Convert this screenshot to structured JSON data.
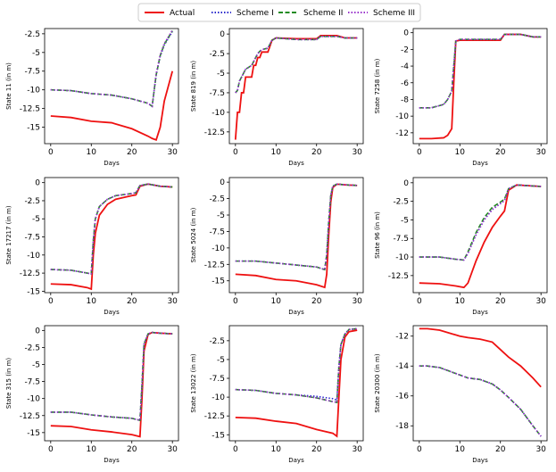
{
  "legend": [
    {
      "name": "Actual",
      "color": "#ee1111",
      "dash": "solid"
    },
    {
      "name": "Scheme I",
      "color": "#2a2acc",
      "dash": "dot"
    },
    {
      "name": "Scheme II",
      "color": "#228b22",
      "dash": "dash"
    },
    {
      "name": "Scheme III",
      "color": "#9933cc",
      "dash": "dot"
    }
  ],
  "chart_data": [
    {
      "type": "line",
      "ylabel": "State 11 (in m)",
      "xlabel": "Days",
      "xlim": [
        -1.5,
        31.5
      ],
      "xticks": [
        0,
        10,
        20,
        30
      ],
      "ylim": [
        -17.2,
        -1.8
      ],
      "yticks": [
        -2.5,
        -5.0,
        -7.5,
        -10.0,
        -12.5,
        -15.0
      ],
      "x": [
        0,
        5,
        10,
        15,
        20,
        24,
        25,
        26,
        27,
        28,
        30
      ],
      "series": [
        {
          "values": [
            -13.5,
            -13.7,
            -14.2,
            -14.4,
            -15.2,
            -16.2,
            -16.5,
            -16.7,
            -15,
            -11.5,
            -7.5
          ]
        },
        {
          "values": [
            -10,
            -10.1,
            -10.5,
            -10.7,
            -11.2,
            -11.8,
            -12.2,
            -8,
            -5.5,
            -4,
            -2.2
          ]
        },
        {
          "values": [
            -10,
            -10.1,
            -10.5,
            -10.7,
            -11.2,
            -11.8,
            -12.2,
            -8,
            -5.4,
            -3.9,
            -2.1
          ]
        },
        {
          "values": [
            -10,
            -10.1,
            -10.5,
            -10.7,
            -11.2,
            -11.8,
            -12.2,
            -7.8,
            -5.3,
            -3.8,
            -2.0
          ]
        }
      ]
    },
    {
      "type": "line",
      "ylabel": "State 819 (in m)",
      "xlabel": "Days",
      "xlim": [
        -1.5,
        31.5
      ],
      "xticks": [
        0,
        10,
        20,
        30
      ],
      "ylim": [
        -14,
        0.7
      ],
      "yticks": [
        0.0,
        -2.5,
        -5.0,
        -7.5,
        -10.0,
        -12.5
      ],
      "x": [
        0,
        0.5,
        1,
        1.5,
        2,
        2.5,
        4,
        4.5,
        5,
        5.5,
        6,
        6.5,
        8,
        9,
        10,
        15,
        20,
        21,
        25,
        27,
        30
      ],
      "series": [
        {
          "values": [
            -13.5,
            -10,
            -10,
            -7.5,
            -7.5,
            -5.5,
            -5.5,
            -4,
            -4,
            -3,
            -3,
            -2.3,
            -2.3,
            -0.8,
            -0.5,
            -0.6,
            -0.6,
            -0.2,
            -0.2,
            -0.5,
            -0.5
          ]
        },
        {
          "values": [
            -7.5,
            -7.2,
            -6,
            -5.5,
            -5,
            -4.5,
            -4,
            -3.5,
            -3,
            -2.5,
            -2.2,
            -2,
            -1.8,
            -0.8,
            -0.5,
            -0.7,
            -0.7,
            -0.3,
            -0.3,
            -0.5,
            -0.5
          ]
        },
        {
          "values": [
            -7.5,
            -7.2,
            -6,
            -5.5,
            -5,
            -4.5,
            -4,
            -3.5,
            -3,
            -2.5,
            -2.2,
            -2,
            -1.8,
            -0.8,
            -0.5,
            -0.7,
            -0.7,
            -0.3,
            -0.3,
            -0.5,
            -0.5
          ]
        },
        {
          "values": [
            -7.5,
            -7.2,
            -6,
            -5.5,
            -5,
            -4.5,
            -4,
            -3.5,
            -3,
            -2.5,
            -2.2,
            -2,
            -1.8,
            -0.8,
            -0.5,
            -0.7,
            -0.7,
            -0.3,
            -0.3,
            -0.5,
            -0.5
          ]
        }
      ]
    },
    {
      "type": "line",
      "ylabel": "State 7258 (in m)",
      "xlabel": "Days",
      "xlim": [
        -1.5,
        31.5
      ],
      "xticks": [
        0,
        10,
        20,
        30
      ],
      "ylim": [
        -13.3,
        0.5
      ],
      "yticks": [
        0,
        -2,
        -4,
        -6,
        -8,
        -10,
        -12
      ],
      "x": [
        0,
        3,
        6,
        7,
        8,
        8.5,
        9,
        10,
        15,
        20,
        21,
        25,
        28,
        30
      ],
      "series": [
        {
          "values": [
            -12.7,
            -12.7,
            -12.6,
            -12.3,
            -11.5,
            -6,
            -1,
            -0.9,
            -0.9,
            -0.9,
            -0.2,
            -0.2,
            -0.5,
            -0.5
          ]
        },
        {
          "values": [
            -9,
            -9,
            -8.6,
            -8,
            -7,
            -4,
            -1,
            -0.8,
            -0.8,
            -0.8,
            -0.2,
            -0.2,
            -0.5,
            -0.5
          ]
        },
        {
          "values": [
            -9,
            -9,
            -8.6,
            -8,
            -7,
            -4,
            -1,
            -0.8,
            -0.8,
            -0.8,
            -0.2,
            -0.2,
            -0.5,
            -0.5
          ]
        },
        {
          "values": [
            -9,
            -9,
            -8.6,
            -8,
            -7,
            -4,
            -1,
            -0.8,
            -0.8,
            -0.8,
            -0.2,
            -0.2,
            -0.5,
            -0.5
          ]
        }
      ]
    },
    {
      "type": "line",
      "ylabel": "State 17217 (in m)",
      "xlabel": "Days",
      "xlim": [
        -1.5,
        31.5
      ],
      "xticks": [
        0,
        10,
        20,
        30
      ],
      "ylim": [
        -15.2,
        0.7
      ],
      "yticks": [
        0.0,
        -2.5,
        -5.0,
        -7.5,
        -10.0,
        -12.5,
        -15.0
      ],
      "x": [
        0,
        5,
        9,
        10,
        10.5,
        11,
        12,
        14,
        16,
        20,
        21,
        22,
        24,
        27,
        30
      ],
      "series": [
        {
          "values": [
            -14,
            -14.1,
            -14.5,
            -14.7,
            -10,
            -7,
            -4.5,
            -3,
            -2.3,
            -1.8,
            -1.7,
            -0.5,
            -0.2,
            -0.5,
            -0.6
          ]
        },
        {
          "values": [
            -12,
            -12.1,
            -12.5,
            -12.6,
            -8,
            -5,
            -3.3,
            -2.3,
            -1.8,
            -1.5,
            -1.4,
            -0.4,
            -0.2,
            -0.5,
            -0.6
          ]
        },
        {
          "values": [
            -12,
            -12.1,
            -12.5,
            -12.6,
            -8,
            -5,
            -3.3,
            -2.3,
            -1.8,
            -1.5,
            -1.4,
            -0.4,
            -0.2,
            -0.5,
            -0.6
          ]
        },
        {
          "values": [
            -12,
            -12.1,
            -12.5,
            -12.6,
            -8,
            -5,
            -3.3,
            -2.3,
            -1.8,
            -1.5,
            -1.4,
            -0.4,
            -0.2,
            -0.5,
            -0.6
          ]
        }
      ]
    },
    {
      "type": "line",
      "ylabel": "State 5024 (in m)",
      "xlabel": "Days",
      "xlim": [
        -1.5,
        31.5
      ],
      "xticks": [
        0,
        10,
        20,
        30
      ],
      "ylim": [
        -16.8,
        0.7
      ],
      "yticks": [
        0.0,
        -2.5,
        -5.0,
        -7.5,
        -10.0,
        -12.5,
        -15.0
      ],
      "x": [
        0,
        5,
        10,
        15,
        20,
        22,
        22.5,
        23,
        23.5,
        24,
        25,
        27,
        30
      ],
      "series": [
        {
          "values": [
            -14,
            -14.2,
            -14.8,
            -15,
            -15.6,
            -16,
            -14,
            -8,
            -3,
            -0.8,
            -0.3,
            -0.4,
            -0.5
          ]
        },
        {
          "values": [
            -12,
            -12,
            -12.3,
            -12.6,
            -12.9,
            -13.3,
            -11,
            -6,
            -2,
            -0.6,
            -0.3,
            -0.4,
            -0.5
          ]
        },
        {
          "values": [
            -12,
            -12,
            -12.3,
            -12.6,
            -12.9,
            -13.3,
            -11,
            -6,
            -2,
            -0.6,
            -0.3,
            -0.4,
            -0.5
          ]
        },
        {
          "values": [
            -12,
            -12,
            -12.3,
            -12.6,
            -12.9,
            -13.3,
            -11,
            -6,
            -2,
            -0.6,
            -0.3,
            -0.4,
            -0.5
          ]
        }
      ]
    },
    {
      "type": "line",
      "ylabel": "State 96 (in m)",
      "xlabel": "Days",
      "xlim": [
        -1.5,
        31.5
      ],
      "xticks": [
        0,
        10,
        20,
        30
      ],
      "ylim": [
        -14.8,
        0.7
      ],
      "yticks": [
        0.0,
        -2.5,
        -5.0,
        -7.5,
        -10.0,
        -12.5
      ],
      "x": [
        0,
        5,
        9,
        11,
        12,
        14,
        16,
        18,
        20,
        21,
        22,
        24,
        27,
        30
      ],
      "series": [
        {
          "values": [
            -13.5,
            -13.6,
            -13.9,
            -14.1,
            -13.5,
            -10.5,
            -8,
            -6,
            -4.5,
            -3.8,
            -1,
            -0.3,
            -0.4,
            -0.5
          ]
        },
        {
          "values": [
            -10,
            -10,
            -10.3,
            -10.4,
            -9.5,
            -7,
            -5,
            -3.6,
            -2.8,
            -2.4,
            -0.8,
            -0.3,
            -0.4,
            -0.5
          ]
        },
        {
          "values": [
            -10,
            -10,
            -10.3,
            -10.4,
            -9.3,
            -6.7,
            -4.7,
            -3.3,
            -2.6,
            -2.2,
            -0.8,
            -0.3,
            -0.4,
            -0.5
          ]
        },
        {
          "values": [
            -10,
            -10,
            -10.3,
            -10.4,
            -9.5,
            -7,
            -5,
            -3.6,
            -2.8,
            -2.4,
            -0.8,
            -0.3,
            -0.4,
            -0.5
          ]
        }
      ]
    },
    {
      "type": "line",
      "ylabel": "State 315 (in m)",
      "xlabel": "Days",
      "xlim": [
        -1.5,
        31.5
      ],
      "xticks": [
        0,
        10,
        20,
        30
      ],
      "ylim": [
        -16.2,
        0.7
      ],
      "yticks": [
        0.0,
        -2.5,
        -5.0,
        -7.5,
        -10.0,
        -12.5,
        -15.0
      ],
      "x": [
        0,
        5,
        10,
        15,
        20,
        22,
        22.5,
        23,
        24,
        25,
        27,
        30
      ],
      "series": [
        {
          "values": [
            -14,
            -14.1,
            -14.6,
            -14.9,
            -15.3,
            -15.6,
            -10,
            -3,
            -0.6,
            -0.3,
            -0.4,
            -0.5
          ]
        },
        {
          "values": [
            -12,
            -12,
            -12.4,
            -12.7,
            -12.9,
            -13.2,
            -8,
            -2,
            -0.5,
            -0.3,
            -0.4,
            -0.5
          ]
        },
        {
          "values": [
            -12,
            -12,
            -12.4,
            -12.7,
            -12.9,
            -13.2,
            -8,
            -2,
            -0.5,
            -0.3,
            -0.4,
            -0.5
          ]
        },
        {
          "values": [
            -12,
            -12,
            -12.4,
            -12.7,
            -12.9,
            -13.2,
            -8,
            -2,
            -0.5,
            -0.3,
            -0.4,
            -0.5
          ]
        }
      ]
    },
    {
      "type": "line",
      "ylabel": "State 13022 (in m)",
      "xlabel": "Days",
      "xlim": [
        -1.5,
        31.5
      ],
      "xticks": [
        0,
        10,
        20,
        30
      ],
      "ylim": [
        -15.8,
        -0.5
      ],
      "yticks": [
        -2.5,
        -5.0,
        -7.5,
        -10.0,
        -12.5,
        -15.0
      ],
      "x": [
        0,
        5,
        10,
        15,
        20,
        24,
        25,
        25.5,
        26,
        27,
        28,
        30
      ],
      "series": [
        {
          "values": [
            -12.7,
            -12.8,
            -13.2,
            -13.5,
            -14.3,
            -14.8,
            -15.2,
            -10,
            -5,
            -2,
            -1.3,
            -1.1
          ]
        },
        {
          "values": [
            -9,
            -9.1,
            -9.5,
            -9.7,
            -9.9,
            -10.2,
            -10.4,
            -6,
            -3,
            -1.6,
            -1,
            -0.9
          ]
        },
        {
          "values": [
            -9,
            -9.1,
            -9.5,
            -9.7,
            -10.1,
            -10.6,
            -10.7,
            -6,
            -3,
            -1.6,
            -1,
            -0.9
          ]
        },
        {
          "values": [
            -9,
            -9.1,
            -9.5,
            -9.7,
            -10.1,
            -10.6,
            -10.7,
            -6,
            -3,
            -1.6,
            -1,
            -0.9
          ]
        }
      ]
    },
    {
      "type": "line",
      "ylabel": "State 20300 (in m)",
      "xlabel": "Days",
      "xlim": [
        -1.5,
        31.5
      ],
      "xticks": [
        0,
        10,
        20,
        30
      ],
      "ylim": [
        -19,
        -11.3
      ],
      "yticks": [
        -12,
        -14,
        -16,
        -18
      ],
      "x": [
        0,
        2,
        5,
        10,
        12,
        15,
        18,
        20,
        22,
        25,
        28,
        30
      ],
      "series": [
        {
          "values": [
            -11.5,
            -11.5,
            -11.6,
            -12,
            -12.1,
            -12.2,
            -12.4,
            -12.9,
            -13.4,
            -14,
            -14.8,
            -15.4
          ]
        },
        {
          "values": [
            -14,
            -14,
            -14.1,
            -14.6,
            -14.8,
            -14.9,
            -15.2,
            -15.6,
            -16.1,
            -16.9,
            -18,
            -18.7
          ]
        },
        {
          "values": [
            -14,
            -14,
            -14.1,
            -14.6,
            -14.8,
            -14.9,
            -15.2,
            -15.6,
            -16.1,
            -16.9,
            -18,
            -18.7
          ]
        },
        {
          "values": [
            -14,
            -14,
            -14.1,
            -14.6,
            -14.8,
            -14.9,
            -15.2,
            -15.6,
            -16.1,
            -16.9,
            -18,
            -18.7
          ]
        }
      ]
    }
  ]
}
